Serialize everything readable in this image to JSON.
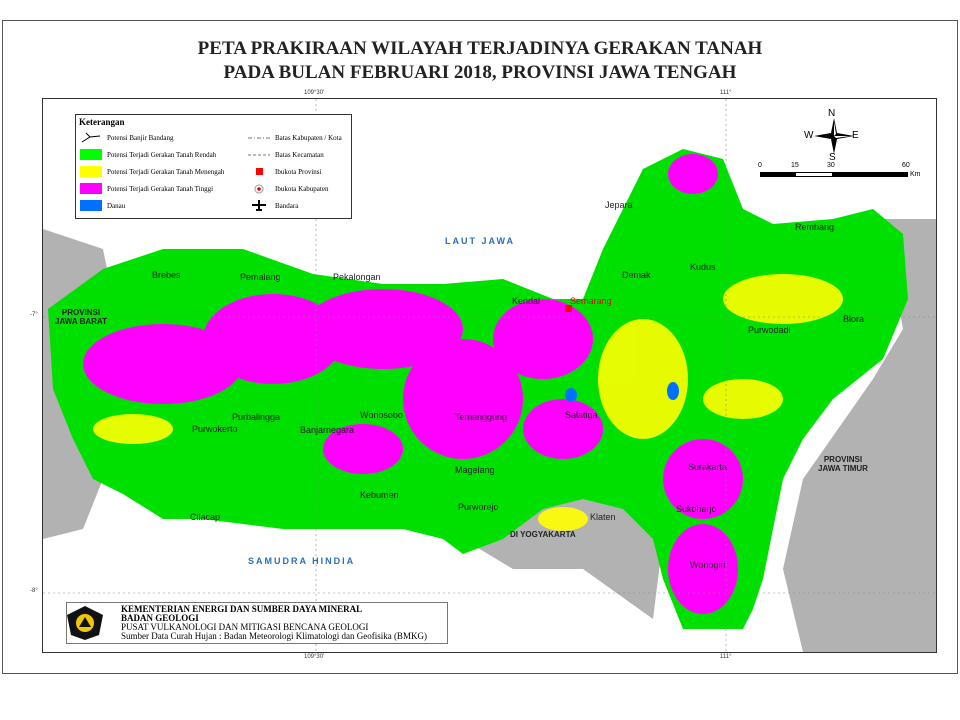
{
  "title": {
    "line1": "PETA PRAKIRAAN WILAYAH TERJADINYA GERAKAN TANAH",
    "line2": "PADA BULAN FEBRUARI 2018, PROVINSI JAWA TENGAH"
  },
  "legend": {
    "heading": "Keterangan",
    "items": [
      {
        "label": "Potensi Banjir Bandang",
        "icon": "flash-flood-line-icon"
      },
      {
        "label": "Potensi Terjadi Gerakan Tanah Rendah",
        "color": "#00ff00"
      },
      {
        "label": "Potensi Terjadi Gerakan Tanah Menengah",
        "color": "#ffff00"
      },
      {
        "label": "Potensi Terjadi Gerakan Tanah Tinggi",
        "color": "#ff00ff"
      },
      {
        "label": "Danau",
        "color": "#0070ff"
      }
    ],
    "symbols": [
      {
        "label": "Batas Kabupaten / Kota",
        "icon": "dash-dot-line-icon"
      },
      {
        "label": "Batas Kecamatan",
        "icon": "dashed-line-icon"
      },
      {
        "label": "Ibukota Provinsi",
        "icon": "red-square-icon",
        "color": "#ff0000"
      },
      {
        "label": "Ibukota Kabupaten",
        "icon": "red-dot-circle-icon"
      },
      {
        "label": "Bandara",
        "icon": "airplane-icon"
      }
    ]
  },
  "compass": {
    "n": "N",
    "s": "S",
    "e": "E",
    "w": "W"
  },
  "scale": {
    "ticks": [
      "0",
      "15",
      "30",
      "60"
    ],
    "unit": "Km"
  },
  "coordinates": {
    "top_left": "109°30'",
    "top_right": "111°",
    "bottom_left": "109°30'",
    "bottom_right": "111°",
    "lat1": "-7°",
    "lat2": "-8°"
  },
  "places": {
    "laut_jawa": "LAUT JAWA",
    "samudra_hindia": "SAMUDRA HINDIA",
    "jawa_barat": "PROVINSI\nJAWA BARAT",
    "jawa_timur": "PROVINSI\nJAWA TIMUR",
    "yogyakarta": "DI YOGYAKARTA",
    "semarang": "Semarang",
    "jepara": "Jepara",
    "rembang": "Rembang",
    "pemalang": "Pemalang",
    "pekalongan": "Pekalongan",
    "kendal": "Kendal",
    "brebes": "Brebes",
    "cilacap": "Cilacap",
    "purwodadi": "Purwodadi",
    "blora": "Blora",
    "surakarta": "Surakarta",
    "kudus": "Kudus",
    "demak": "Demak",
    "purworejo": "Purworejo",
    "wonosobo": "Wonosobo",
    "banjarnegara": "Banjarnegara",
    "purbalingga": "Purbalingga",
    "purwokerto": "Purwokerto",
    "kebumen": "Kebumen",
    "magelang": "Magelang",
    "salatiga": "Salatiga",
    "temanggung": "Temanggung",
    "klaten": "Klaten",
    "wonogiri": "Wonogiri",
    "sukoharjo": "Sukoharjo"
  },
  "institution": {
    "line1": "KEMENTERIAN ENERGI DAN SUMBER DAYA MINERAL",
    "line2": "BADAN GEOLOGI",
    "line3": "PUSAT VULKANOLOGI DAN MITIGASI BENCANA GEOLOGI",
    "line4": "Sumber Data Curah Hujan : Badan Meteorologi Klimatologi dan Geofisika (BMKG)"
  },
  "colors": {
    "low": "#00ff00",
    "medium": "#ffff00",
    "high": "#ff00ff",
    "lake": "#0070ff",
    "outside": "#b2b2b2"
  }
}
